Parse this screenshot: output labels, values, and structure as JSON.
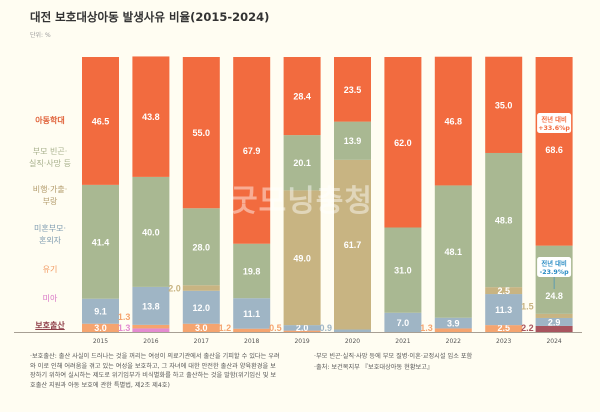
{
  "chart_data": {
    "type": "bar",
    "stacked": true,
    "normalized_percent": true,
    "title": "대전 보호대상아동 발생사유 비율(2015-2024)",
    "unit": "단위: %",
    "categories": [
      "2015",
      "2016",
      "2017",
      "2018",
      "2019",
      "2020",
      "2021",
      "2022",
      "2023",
      "2024"
    ],
    "ylim": [
      0,
      100
    ],
    "grid": false,
    "legend_placement": "left",
    "series": [
      {
        "name": "보호출산",
        "color": "#a8545e",
        "values": [
          null,
          null,
          null,
          null,
          null,
          null,
          null,
          null,
          null,
          2.2
        ]
      },
      {
        "name": "미아",
        "color": "#e48bd1",
        "values": [
          null,
          1.3,
          null,
          null,
          null,
          null,
          null,
          null,
          null,
          null
        ]
      },
      {
        "name": "유기",
        "color": "#f5a46f",
        "values": [
          3.0,
          1.3,
          3.0,
          1.2,
          0.5,
          null,
          null,
          1.3,
          2.5,
          null
        ]
      },
      {
        "name": "미혼부모·혼외자",
        "color": "#9fb5c5",
        "values": [
          9.1,
          13.8,
          12.0,
          11.1,
          2.0,
          0.9,
          7.0,
          3.9,
          11.3,
          2.9
        ]
      },
      {
        "name": "비행·가출·부랑",
        "color": "#c8b482",
        "values": [
          null,
          null,
          2.0,
          null,
          49.0,
          61.7,
          null,
          null,
          2.5,
          1.5
        ]
      },
      {
        "name": "부모 빈곤·실직·사망 등",
        "color": "#a9b892",
        "values": [
          41.4,
          40.0,
          28.0,
          19.8,
          20.1,
          13.9,
          31.0,
          48.1,
          48.8,
          24.8
        ]
      },
      {
        "name": "아동학대",
        "color": "#f26b3f",
        "values": [
          46.5,
          43.8,
          55.0,
          67.9,
          28.4,
          23.5,
          62.0,
          46.8,
          35.0,
          68.6
        ]
      }
    ],
    "legend_lines": [
      {
        "key": "아동학대",
        "lines": [
          "아동학대"
        ]
      },
      {
        "key": "부모빈곤",
        "lines": [
          "부모 빈곤·",
          "실직·사망 등"
        ]
      },
      {
        "key": "비행",
        "lines": [
          "비행·가출·",
          "부랑"
        ]
      },
      {
        "key": "미혼부모",
        "lines": [
          "미혼부모·",
          "혼외자"
        ]
      },
      {
        "key": "유기",
        "lines": [
          "유기"
        ]
      },
      {
        "key": "미아",
        "lines": [
          "미아"
        ]
      },
      {
        "key": "보호출산",
        "lines": [
          "보호출산"
        ]
      }
    ],
    "annotations": [
      {
        "category": "2024",
        "series": "아동학대",
        "label": [
          "전년 대비",
          "+33.6%p"
        ],
        "color": "#f26b3f"
      },
      {
        "category": "2024",
        "series": "부모 빈곤·실직·사망 등",
        "label": [
          "전년 대비",
          "-23.9%p"
        ],
        "color": "#2a8cc4"
      }
    ]
  },
  "watermark": "굿모닝충청",
  "footnotes": {
    "left": "·보호출산: 출산 사실이 드러나는 것을 꺼리는 여성이 의료기관에서 출산을 기피할 수 있다는 우려와 이로 인해 어려움을 겪고 있는 여성을 보호하고, 그 자녀에 대한 안전한 출산과 양육환경을 보장하기 위하여 실시하는 제도로 위기임부가 비식별화를 하고 출산하는 것을 말함(위기임신 및 보호출산 지원과 아동 보호에 관한 특별법, 제2조 제4호)",
    "right1": "·부모 빈곤·실직·사망 등에 부모 질병·이혼·교정시설 입소 포함",
    "right2": "·출처: 보건복지부 『보호대상아동 현황보고』"
  }
}
